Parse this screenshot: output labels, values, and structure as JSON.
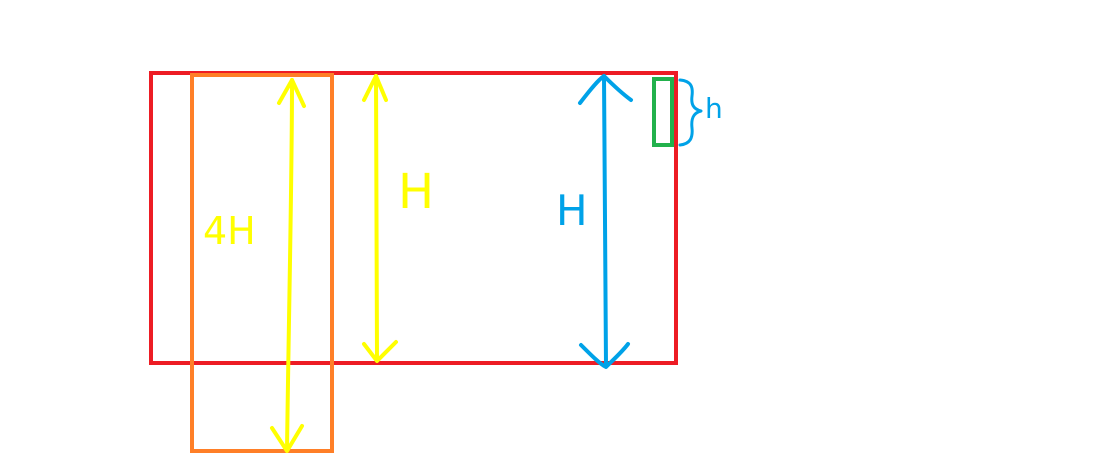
{
  "colors": {
    "background": "#ffffff",
    "outer_rect": "#ed1c24",
    "tall_rect": "#ff7f27",
    "small_rect": "#22b14c",
    "yellow_arrow": "#ffff00",
    "blue_arrow": "#00a2e8",
    "blue_label": "#00a2e8",
    "yellow_label": "#ffff00"
  },
  "labels": {
    "tall_height": "4H",
    "red_height": "H",
    "blue_height": "H",
    "small_height": "h"
  }
}
